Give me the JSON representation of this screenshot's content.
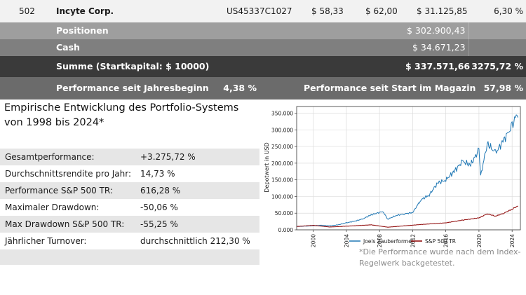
{
  "stock_row": {
    "number": "502",
    "name": "Incyte Corp.",
    "isin": "US45337C1027",
    "price1": "$ 58,33",
    "price2": "$ 62,00",
    "value": "$ 31.125,85",
    "weight": "6,30 %"
  },
  "positionen": {
    "label": "Positionen",
    "value": "$ 302.900,43"
  },
  "cash": {
    "label": "Cash",
    "value": "$ 34.671,23"
  },
  "summe": {
    "label": "Summe (Startkapital: $ 10000)",
    "value": "$ 337.571,66",
    "percent": "3275,72 %"
  },
  "performance": {
    "ytd_label": "Performance seit Jahresbeginn",
    "ytd_value": "4,38 %",
    "start_label": "Performance seit Start im Magazin",
    "start_value": "57,98 %"
  },
  "history": {
    "title": "Empirische Entwicklung des Portfolio-Systems von 1998 bis 2024*",
    "stats": [
      {
        "label": "Gesamtperformance:",
        "value": "+3.275,72 %"
      },
      {
        "label": "Durchschnittsrendite pro Jahr:",
        "value": "14,73 %"
      },
      {
        "label": "Performance S&P 500 TR:",
        "value": "616,28 %"
      },
      {
        "label": "Maximaler Drawdown:",
        "value": "-50,06 %"
      },
      {
        "label": "Max Drawdown S&P 500 TR:",
        "value": "-55,25 %"
      },
      {
        "label": "Jährlicher Turnover:",
        "value": "durchschnittlich 212,30 %"
      }
    ]
  },
  "footnote": "*Die Performance wurde nach dem Index-Regelwerk backgetestet.",
  "chart_data": {
    "type": "line",
    "ylabel": "Depotwert in USD",
    "xlabel": "",
    "xlim": [
      1998,
      2025
    ],
    "ylim": [
      0,
      370000
    ],
    "x_ticks": [
      2000,
      2004,
      2008,
      2012,
      2016,
      2020,
      2024
    ],
    "y_ticks": [
      0,
      50000,
      100000,
      150000,
      200000,
      250000,
      300000,
      350000
    ],
    "y_tick_labels": [
      "0.000",
      "50.000",
      "100.000",
      "150.000",
      "200.000",
      "250.000",
      "300.000",
      "350.000"
    ],
    "legend_position": "bottom",
    "grid": true,
    "series": [
      {
        "name": "Joels Zauberformel",
        "color": "#1f77b4",
        "points": [
          [
            1998,
            10000
          ],
          [
            1999,
            11000
          ],
          [
            2000,
            12500
          ],
          [
            2001,
            13500
          ],
          [
            2002,
            12000
          ],
          [
            2003,
            15000
          ],
          [
            2004,
            21000
          ],
          [
            2005,
            26000
          ],
          [
            2006,
            33000
          ],
          [
            2007,
            45000
          ],
          [
            2008.4,
            55000
          ],
          [
            2009,
            32000
          ],
          [
            2010,
            43000
          ],
          [
            2011,
            48000
          ],
          [
            2012,
            52000
          ],
          [
            2013,
            90000
          ],
          [
            2014,
            105000
          ],
          [
            2015,
            140000
          ],
          [
            2016,
            150000
          ],
          [
            2017,
            175000
          ],
          [
            2018,
            205000
          ],
          [
            2019,
            195000
          ],
          [
            2020,
            240000
          ],
          [
            2020.2,
            160000
          ],
          [
            2021,
            260000
          ],
          [
            2022,
            230000
          ],
          [
            2023,
            270000
          ],
          [
            2023.5,
            290000
          ],
          [
            2024,
            310000
          ],
          [
            2024.5,
            345000
          ],
          [
            2024.7,
            337000
          ]
        ]
      },
      {
        "name": "S&P 500 TR",
        "color": "#8b0000",
        "points": [
          [
            1998,
            10000
          ],
          [
            2000,
            13500
          ],
          [
            2002,
            8500
          ],
          [
            2004,
            11000
          ],
          [
            2007,
            15000
          ],
          [
            2009,
            8000
          ],
          [
            2011,
            12000
          ],
          [
            2013,
            16000
          ],
          [
            2016,
            21000
          ],
          [
            2018,
            29000
          ],
          [
            2020,
            36000
          ],
          [
            2021,
            48000
          ],
          [
            2022,
            41000
          ],
          [
            2023,
            50000
          ],
          [
            2024,
            62000
          ],
          [
            2024.7,
            71628
          ]
        ]
      }
    ]
  }
}
